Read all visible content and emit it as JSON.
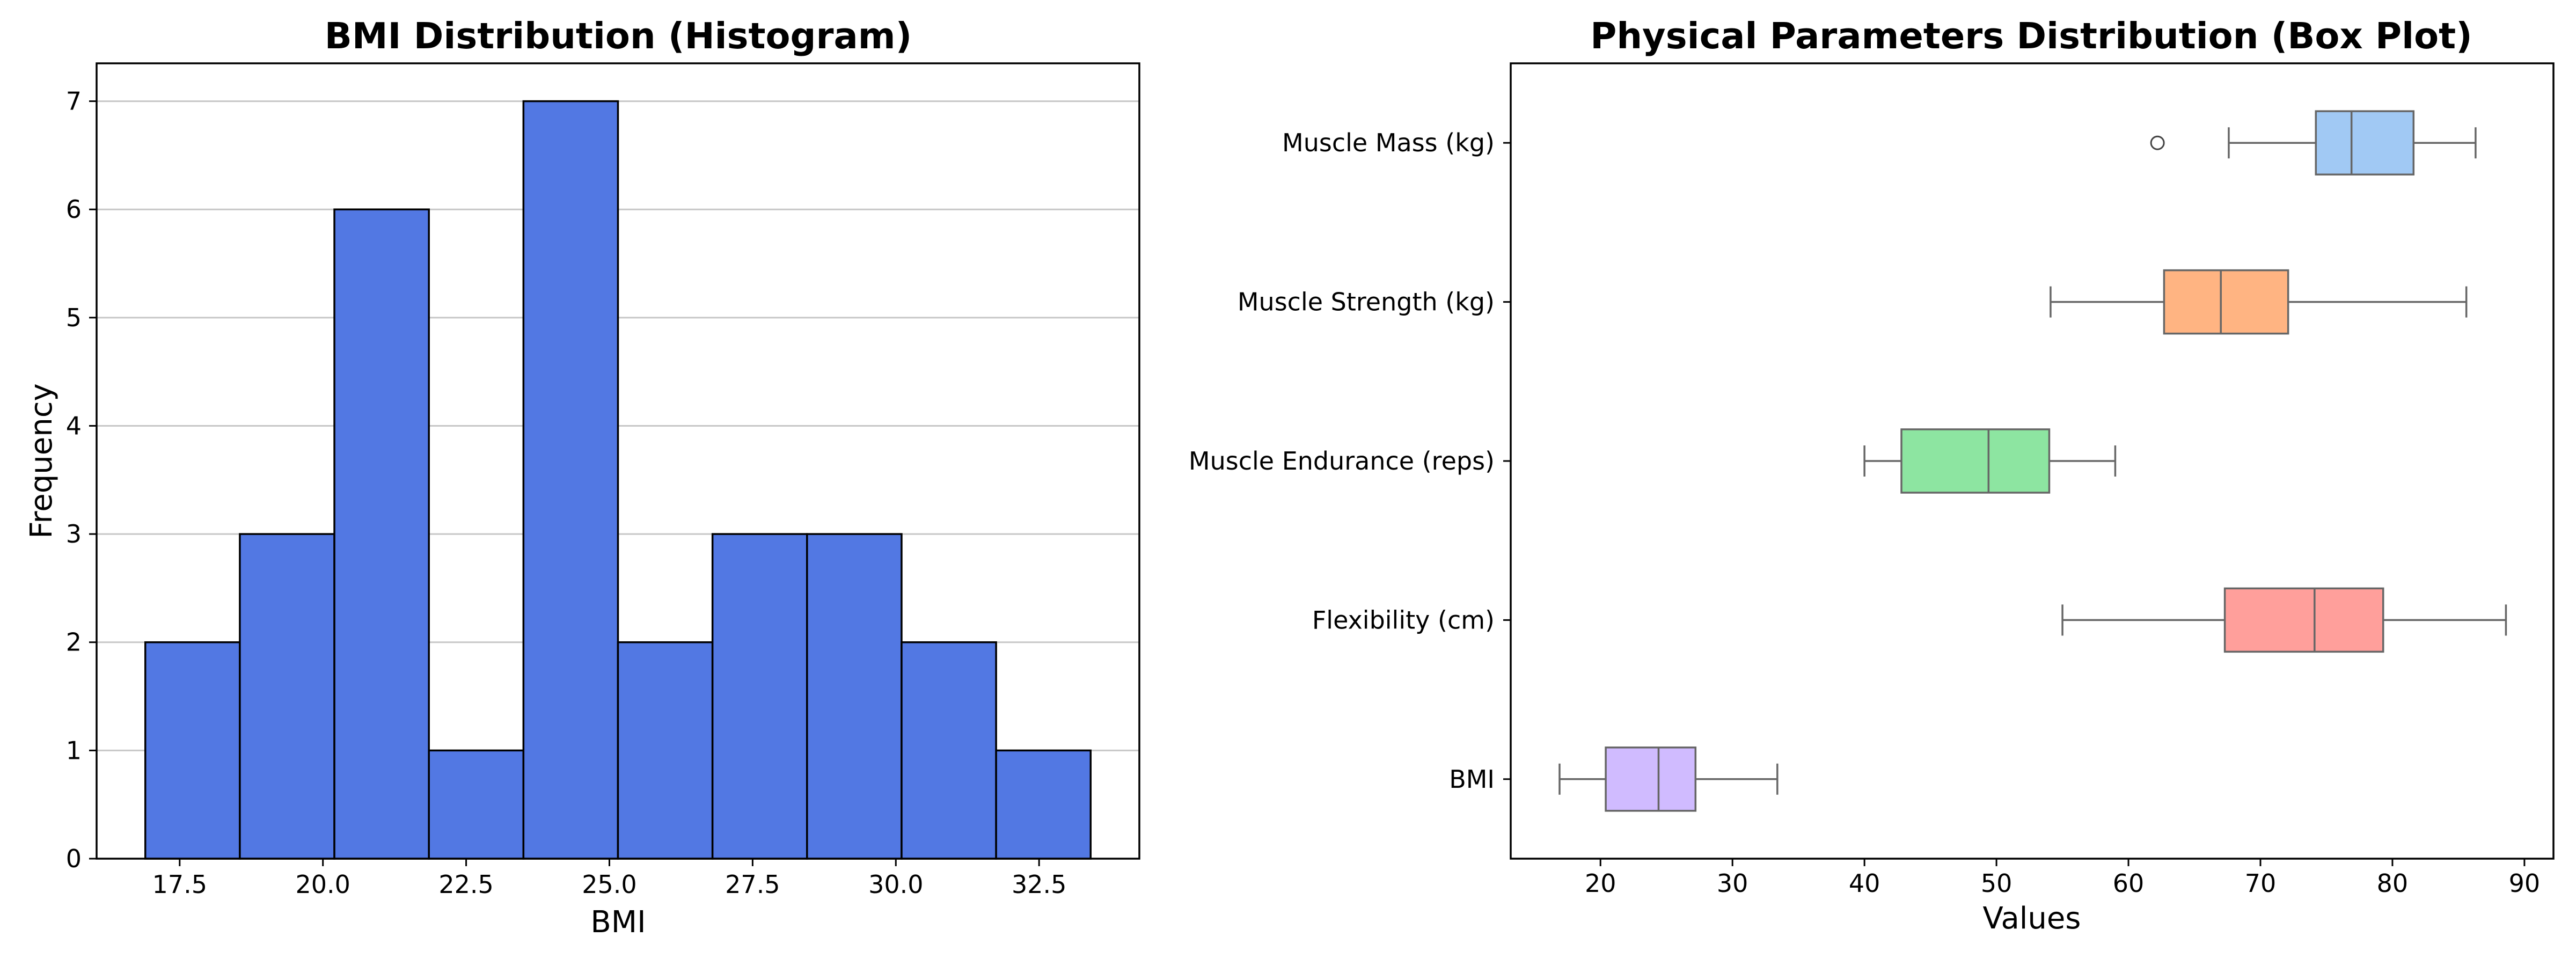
{
  "chart_data": [
    {
      "type": "bar",
      "subtype": "histogram",
      "title": "BMI Distribution (Histogram)",
      "xlabel": "BMI",
      "ylabel": "Frequency",
      "bin_edges": [
        16.9,
        18.55,
        20.2,
        21.85,
        23.5,
        25.15,
        26.8,
        28.45,
        30.1,
        31.75,
        33.4
      ],
      "values": [
        2,
        3,
        6,
        1,
        7,
        2,
        3,
        3,
        2,
        1
      ],
      "xlim": [
        16.05,
        34.25
      ],
      "ylim": [
        0,
        7.35
      ],
      "xticks": [
        17.5,
        20.0,
        22.5,
        25.0,
        27.5,
        30.0,
        32.5
      ],
      "xtick_labels": [
        "17.5",
        "20.0",
        "22.5",
        "25.0",
        "27.5",
        "30.0",
        "32.5"
      ],
      "yticks": [
        0,
        1,
        2,
        3,
        4,
        5,
        6,
        7
      ],
      "ytick_labels": [
        "0",
        "1",
        "2",
        "3",
        "4",
        "5",
        "6",
        "7"
      ],
      "grid": "horizontal",
      "color": "#5278e3",
      "edge_color": "#000000"
    },
    {
      "type": "box",
      "title": "Physical Parameters Distribution (Box Plot)",
      "xlabel": "Values",
      "ylabel": "",
      "xlim": [
        13.2,
        92.2
      ],
      "xticks": [
        20,
        30,
        40,
        50,
        60,
        70,
        80,
        90
      ],
      "xtick_labels": [
        "20",
        "30",
        "40",
        "50",
        "60",
        "70",
        "80",
        "90"
      ],
      "grid": false,
      "series": [
        {
          "name": "Muscle Mass (kg)",
          "whisker_low": 67.6,
          "q1": 74.2,
          "median": 76.9,
          "q3": 81.6,
          "whisker_high": 86.3,
          "outliers": [
            62.2
          ],
          "color": "#a1c9f4"
        },
        {
          "name": "Muscle Strength (kg)",
          "whisker_low": 54.1,
          "q1": 62.7,
          "median": 67.0,
          "q3": 72.1,
          "whisker_high": 85.6,
          "outliers": [],
          "color": "#ffb482"
        },
        {
          "name": "Muscle Endurance (reps)",
          "whisker_low": 40.0,
          "q1": 42.8,
          "median": 49.4,
          "q3": 54.0,
          "whisker_high": 59.0,
          "outliers": [],
          "color": "#8de5a1"
        },
        {
          "name": "Flexibility (cm)",
          "whisker_low": 55.0,
          "q1": 67.3,
          "median": 74.1,
          "q3": 79.3,
          "whisker_high": 88.6,
          "outliers": [],
          "color": "#ff9f9b"
        },
        {
          "name": "BMI",
          "whisker_low": 16.9,
          "q1": 20.4,
          "median": 24.4,
          "q3": 27.2,
          "whisker_high": 33.4,
          "outliers": [],
          "color": "#d0bbff"
        }
      ]
    }
  ]
}
